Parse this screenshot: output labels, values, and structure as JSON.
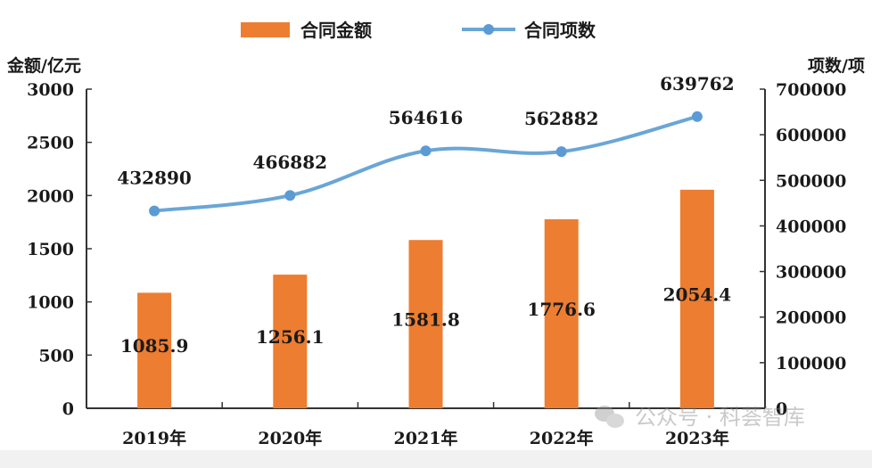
{
  "chart_data": {
    "type": "bar+line",
    "categories": [
      "2019年",
      "2020年",
      "2021年",
      "2022年",
      "2023年"
    ],
    "series": [
      {
        "name": "合同金额",
        "type": "bar",
        "axis": "left",
        "values": [
          1085.9,
          1256.1,
          1581.8,
          1776.6,
          2054.4
        ],
        "color": "#ED7D31"
      },
      {
        "name": "合同项数",
        "type": "line",
        "axis": "right",
        "values": [
          432890,
          466882,
          564616,
          562882,
          639762
        ],
        "color": "#5B9BD5"
      }
    ],
    "ylabel_left": "金额/亿元",
    "ylabel_right": "项数/项",
    "ylim_left": [
      0,
      3000
    ],
    "ylim_right": [
      0,
      700000
    ],
    "yticks_left": [
      0,
      500,
      1000,
      1500,
      2000,
      2500,
      3000
    ],
    "yticks_right": [
      0,
      100000,
      200000,
      300000,
      400000,
      500000,
      600000,
      700000
    ],
    "legend_position": "top",
    "grid": false
  },
  "watermark": "公众号 · 科荟智库"
}
